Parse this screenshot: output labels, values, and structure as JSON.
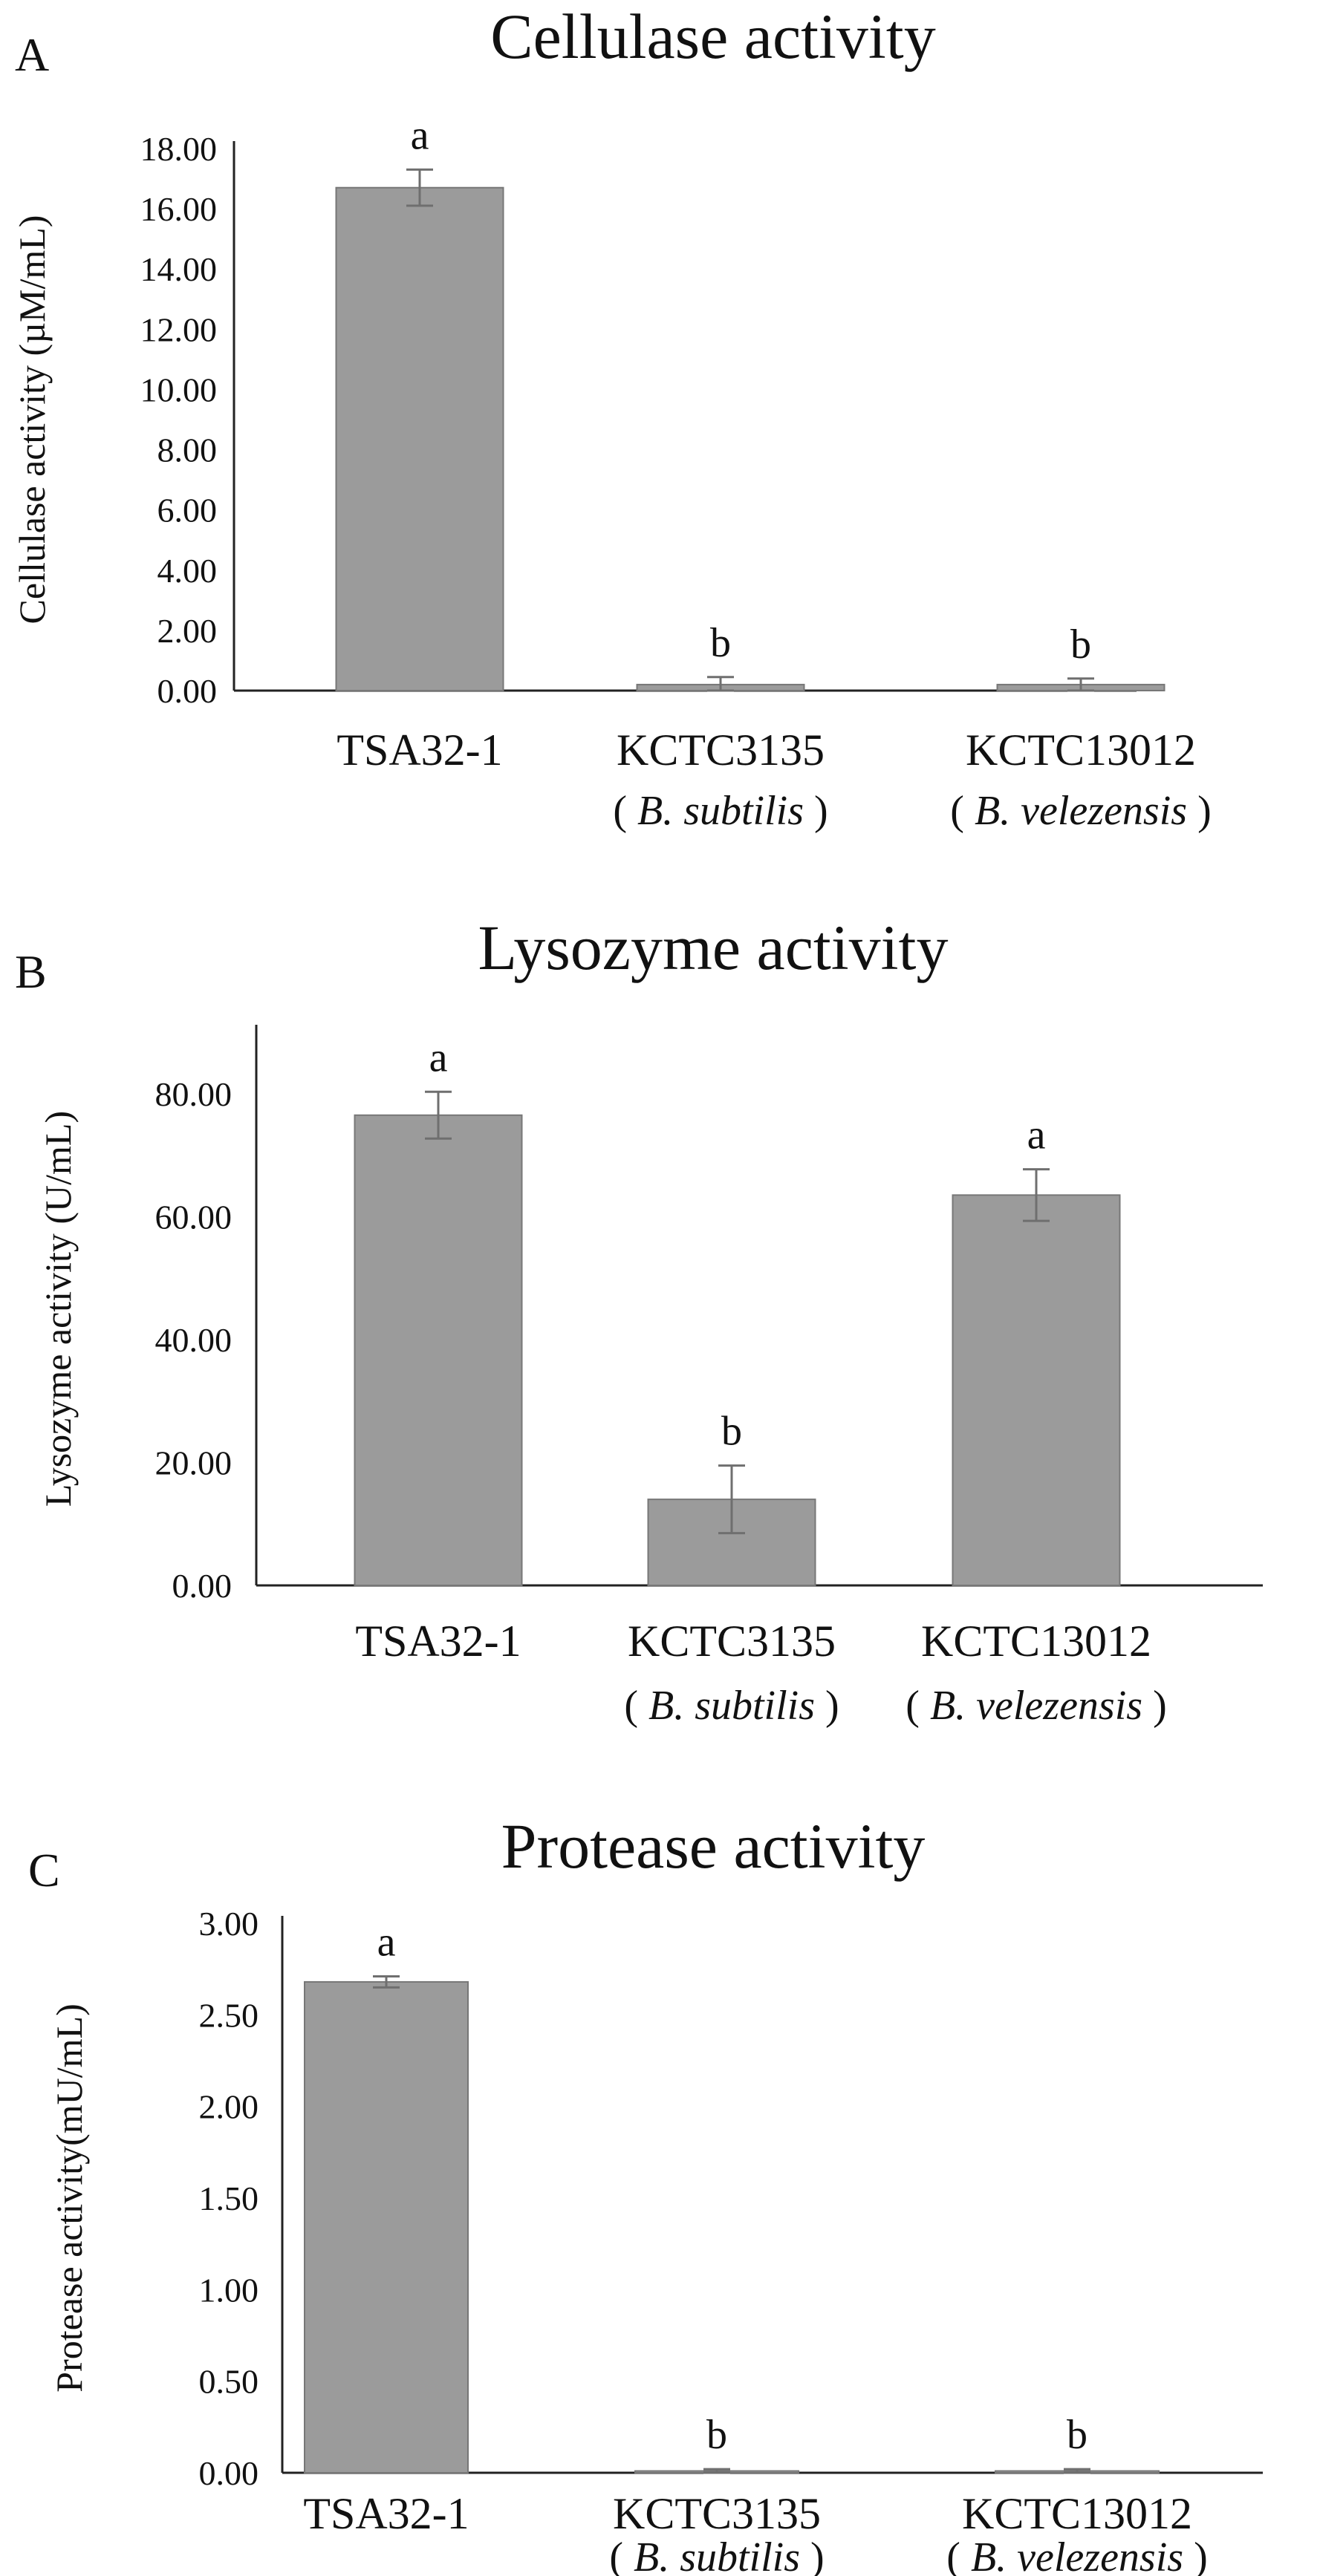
{
  "colors": {
    "bar_fill": "#9b9b9b",
    "bar_stroke": "#777777",
    "axis": "#222222",
    "error": "#6f6f6f",
    "text": "#111111"
  },
  "chart_data": [
    {
      "type": "bar",
      "panel": "A",
      "title": "Cellulase activity",
      "ylabel": "Cellulase activity (µM/mL)",
      "ylim": [
        0,
        18
      ],
      "yticks": [
        "0.00",
        "2.00",
        "4.00",
        "6.00",
        "8.00",
        "10.00",
        "12.00",
        "14.00",
        "16.00",
        "18.00"
      ],
      "categories": [
        "TSA32-1",
        "KCTC3135",
        "KCTC13012"
      ],
      "subtitles": [
        "B. subtilis",
        "B. velezensis"
      ],
      "values": [
        16.7,
        0.2,
        0.2
      ],
      "errors": [
        0.6,
        0.25,
        0.2
      ],
      "significance": [
        "a",
        "b",
        "b"
      ]
    },
    {
      "type": "bar",
      "panel": "B",
      "title": "Lysozyme activity",
      "ylabel": "Lysozyme activity (U/mL)",
      "ylim": [
        0,
        90
      ],
      "yticks": [
        "0.00",
        "20.00",
        "40.00",
        "60.00",
        "80.00"
      ],
      "categories": [
        "TSA32-1",
        "KCTC3135",
        "KCTC13012"
      ],
      "subtitles": [
        "B. subtilis",
        "B. velezensis"
      ],
      "values": [
        76.5,
        14.0,
        63.5
      ],
      "errors": [
        3.8,
        5.5,
        4.2
      ],
      "significance": [
        "a",
        "b",
        "a"
      ]
    },
    {
      "type": "bar",
      "panel": "C",
      "title": "Protease activity",
      "ylabel": "Protease activity(mU/mL)",
      "ylim": [
        0,
        3
      ],
      "yticks": [
        "0.00",
        "0.50",
        "1.00",
        "1.50",
        "2.00",
        "2.50",
        "3.00"
      ],
      "categories": [
        "TSA32-1",
        "KCTC3135",
        "KCTC13012"
      ],
      "subtitles": [
        "B. subtilis",
        "B. velezensis"
      ],
      "values": [
        2.68,
        0.01,
        0.01
      ],
      "errors": [
        0.03,
        0.01,
        0.01
      ],
      "significance": [
        "a",
        "b",
        "b"
      ]
    }
  ]
}
